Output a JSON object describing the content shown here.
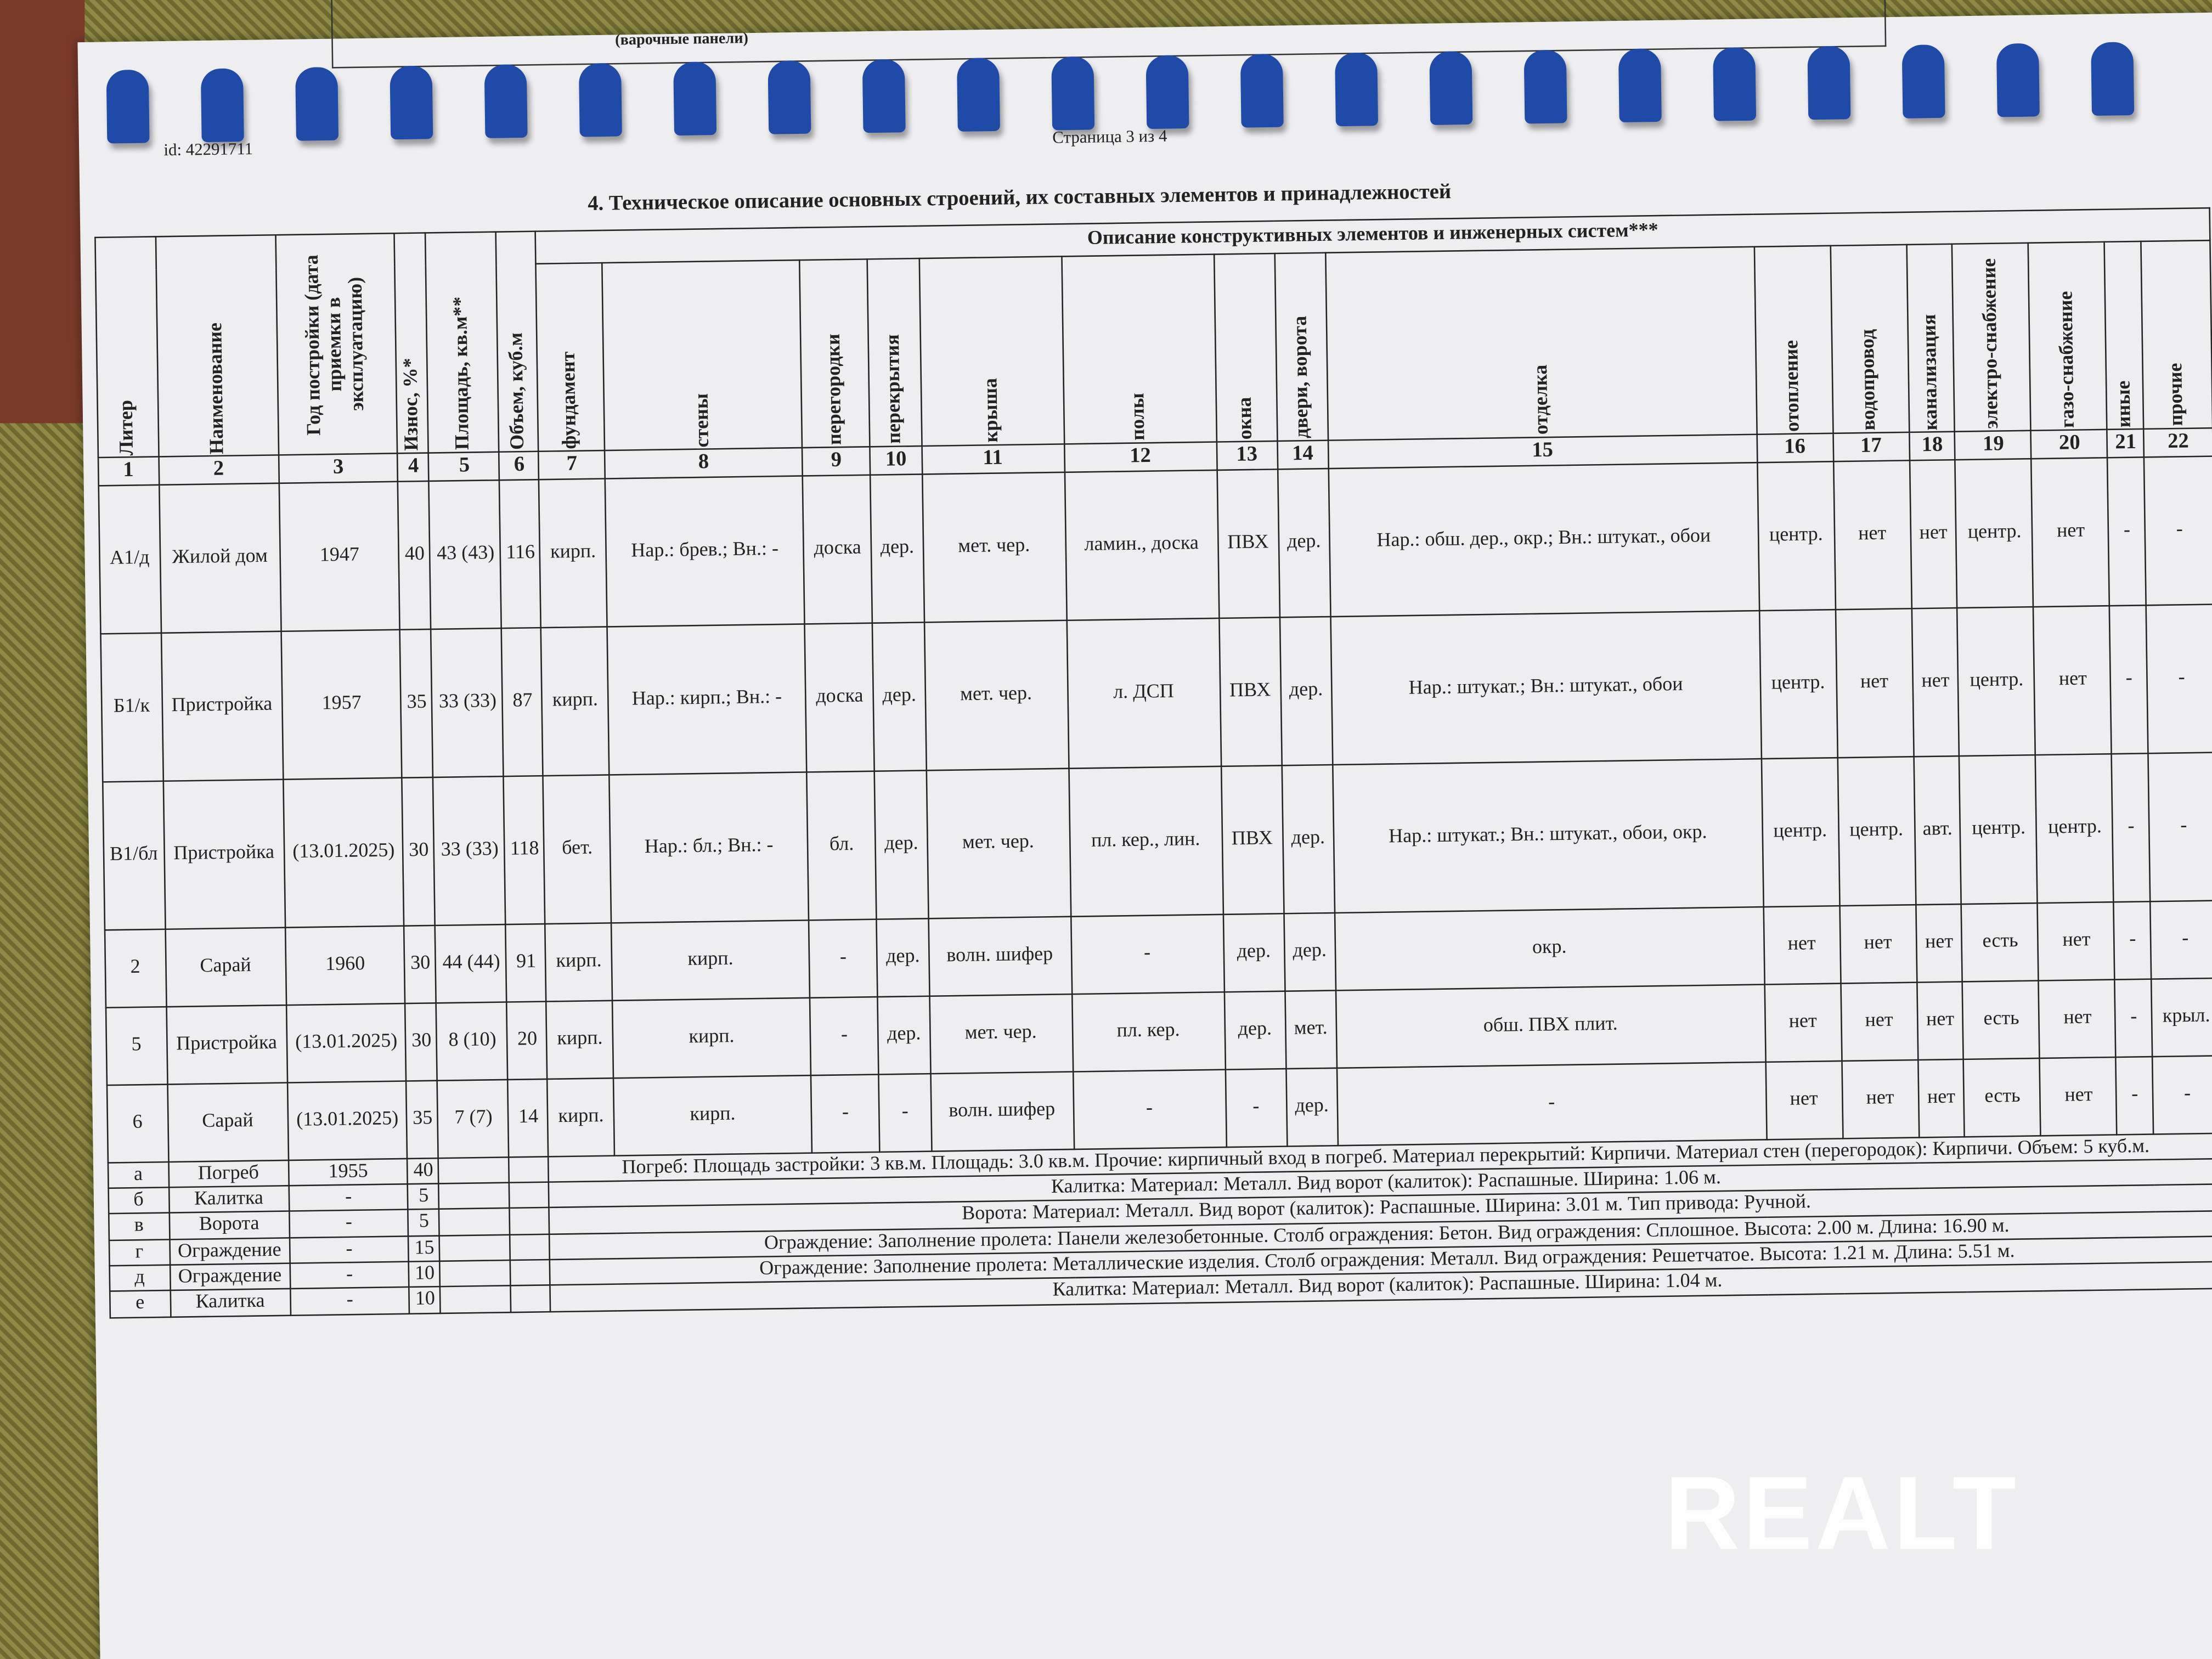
{
  "prev_page_fragment": "(варочные панели)",
  "header": {
    "id": "id: 42291711",
    "page": "Страница 3 из 4"
  },
  "title": "4. Техническое описание основных строений, их составных элементов и принадлежностей",
  "group_header": "Описание конструктивных элементов и инженерных систем***",
  "columns": [
    "Литер",
    "Наименование",
    "Год постройки (дата приемки в эксплуатацию)",
    "Износ, %*",
    "Площадь, кв.м**",
    "Объем, куб.м",
    "фундамент",
    "стены",
    "перегородки",
    "перекрытия",
    "крыша",
    "полы",
    "окна",
    "двери, ворота",
    "отделка",
    "отопление",
    "водопровод",
    "канализация",
    "электро-снабжение",
    "газо-снабжение",
    "иные",
    "прочие"
  ],
  "column_numbers": [
    "1",
    "2",
    "3",
    "4",
    "5",
    "6",
    "7",
    "8",
    "9",
    "10",
    "11",
    "12",
    "13",
    "14",
    "15",
    "16",
    "17",
    "18",
    "19",
    "20",
    "21",
    "22"
  ],
  "rows": [
    [
      "А1/д",
      "Жилой дом",
      "1947",
      "40",
      "43 (43)",
      "116",
      "кирп.",
      "Нар.: брев.; Вн.: -",
      "доска",
      "дер.",
      "мет. чер.",
      "ламин., доска",
      "ПВХ",
      "дер.",
      "Нар.: обш. дер., окр.; Вн.: штукат., обои",
      "центр.",
      "нет",
      "нет",
      "центр.",
      "нет",
      "-",
      "-"
    ],
    [
      "Б1/к",
      "Пристройка",
      "1957",
      "35",
      "33 (33)",
      "87",
      "кирп.",
      "Нар.: кирп.; Вн.: -",
      "доска",
      "дер.",
      "мет. чер.",
      "л. ДСП",
      "ПВХ",
      "дер.",
      "Нар.: штукат.; Вн.: штукат., обои",
      "центр.",
      "нет",
      "нет",
      "центр.",
      "нет",
      "-",
      "-"
    ],
    [
      "В1/бл",
      "Пристройка",
      "(13.01.2025)",
      "30",
      "33 (33)",
      "118",
      "бет.",
      "Нар.: бл.; Вн.: -",
      "бл.",
      "дер.",
      "мет. чер.",
      "пл. кер., лин.",
      "ПВХ",
      "дер.",
      "Нар.: штукат.; Вн.: штукат., обои, окр.",
      "центр.",
      "центр.",
      "авт.",
      "центр.",
      "центр.",
      "-",
      "-"
    ],
    [
      "2",
      "Сарай",
      "1960",
      "30",
      "44 (44)",
      "91",
      "кирп.",
      "кирп.",
      "-",
      "дер.",
      "волн. шифер",
      "-",
      "дер.",
      "дер.",
      "окр.",
      "нет",
      "нет",
      "нет",
      "есть",
      "нет",
      "-",
      "-"
    ],
    [
      "5",
      "Пристройка",
      "(13.01.2025)",
      "30",
      "8 (10)",
      "20",
      "кирп.",
      "кирп.",
      "-",
      "дер.",
      "мет. чер.",
      "пл. кер.",
      "дер.",
      "мет.",
      "обш. ПВХ плит.",
      "нет",
      "нет",
      "нет",
      "есть",
      "нет",
      "-",
      "крыл."
    ],
    [
      "6",
      "Сарай",
      "(13.01.2025)",
      "35",
      "7 (7)",
      "14",
      "кирп.",
      "кирп.",
      "-",
      "-",
      "волн. шифер",
      "-",
      "-",
      "дер.",
      "-",
      "нет",
      "нет",
      "нет",
      "есть",
      "нет",
      "-",
      "-"
    ]
  ],
  "aux_rows": [
    [
      "а",
      "Погреб",
      "1955",
      "40",
      "Погреб: Площадь застройки: 3 кв.м. Площадь: 3.0 кв.м. Прочие: кирпичный вход в погреб. Материал перекрытий: Кирпичи. Материал стен (перегородок): Кирпичи. Объем: 5 куб.м."
    ],
    [
      "б",
      "Калитка",
      "-",
      "5",
      "Калитка: Материал: Металл. Вид ворот (калиток): Распашные. Ширина: 1.06 м."
    ],
    [
      "в",
      "Ворота",
      "-",
      "5",
      "Ворота: Материал: Металл. Вид ворот (калиток): Распашные. Ширина: 3.01 м. Тип привода: Ручной."
    ],
    [
      "г",
      "Ограждение",
      "-",
      "15",
      "Ограждение: Заполнение пролета: Панели железобетонные. Столб ограждения: Бетон. Вид ограждения: Сплошное. Высота: 2.00 м. Длина: 16.90 м."
    ],
    [
      "д",
      "Ограждение",
      "-",
      "10",
      "Ограждение: Заполнение пролета: Металлические изделия. Столб ограждения: Металл. Вид ограждения: Решетчатое. Высота: 1.21 м. Длина: 5.51 м."
    ],
    [
      "е",
      "Калитка",
      "-",
      "10",
      "Калитка: Материал: Металл. Вид ворот (калиток): Распашные. Ширина: 1.04 м."
    ]
  ],
  "watermark": "REALT"
}
